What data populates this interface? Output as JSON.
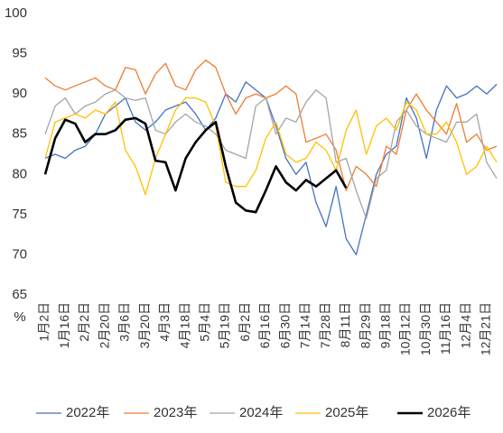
{
  "chart_data": {
    "type": "line",
    "categories": [
      "1月2日",
      null,
      "1月16日",
      null,
      "2月2日",
      null,
      "2月20日",
      null,
      "3月6日",
      null,
      "3月20日",
      null,
      "4月3日",
      null,
      "4月18日",
      null,
      "5月4日",
      null,
      "5月19日",
      null,
      "6月2日",
      null,
      "6月16日",
      null,
      "6月30日",
      null,
      "7月14日",
      null,
      "7月28日",
      null,
      "8月11日",
      null,
      "8月29日",
      null,
      "9月18日",
      null,
      "10月12日",
      null,
      "10月30日",
      null,
      "11月16日",
      null,
      "12月4日",
      null,
      "12月21日",
      null
    ],
    "series": [
      {
        "name": "2022年",
        "color": "#4472c4",
        "width": 1.3,
        "values": [
          82,
          82.5,
          82,
          83,
          83.5,
          85,
          87.5,
          88.5,
          89.5,
          86.5,
          85.5,
          86.5,
          88,
          88.5,
          89,
          87.5,
          85.5,
          87,
          90,
          89,
          91.5,
          90.5,
          89.5,
          86,
          82,
          80,
          81.5,
          76.5,
          73.5,
          78.5,
          72,
          70,
          75,
          80,
          82.5,
          83.5,
          89.5,
          87,
          82,
          88,
          91,
          89.5,
          90,
          91,
          90,
          91.2
        ]
      },
      {
        "name": "2023年",
        "color": "#ed7d31",
        "width": 1.3,
        "values": [
          92,
          91,
          90.5,
          91,
          91.5,
          92,
          91,
          90.5,
          93.3,
          93,
          90,
          92.5,
          93.8,
          91,
          90.5,
          93,
          94.2,
          93.3,
          90,
          87.5,
          89.5,
          90,
          89.5,
          90,
          91,
          90,
          84,
          84.5,
          85,
          83,
          78,
          81,
          80,
          78.5,
          83.5,
          82.5,
          88,
          90,
          88,
          86.5,
          85,
          88.8,
          84,
          85,
          83,
          83.5
        ]
      },
      {
        "name": "2024年",
        "color": "#a5a5a5",
        "width": 1.3,
        "values": [
          85,
          88.5,
          89.5,
          87.5,
          88.5,
          89,
          90,
          90.5,
          89.5,
          89.2,
          89.5,
          85.5,
          85,
          86.5,
          87.5,
          86.5,
          86,
          85,
          83,
          82.5,
          82,
          88.5,
          89.5,
          85,
          87,
          86.5,
          89,
          90.5,
          89.5,
          81.5,
          82,
          78,
          74.5,
          79.5,
          80.5,
          86.5,
          88,
          86,
          85,
          84.5,
          84,
          86.5,
          86.5,
          87.5,
          81.5,
          79.5
        ]
      },
      {
        "name": "2025年",
        "color": "#ffc000",
        "width": 1.3,
        "values": [
          82,
          86.5,
          87,
          87.5,
          87,
          88,
          87.5,
          89,
          83,
          81,
          77.5,
          82,
          85,
          88,
          89.5,
          89.5,
          89,
          86,
          79,
          78.5,
          78.5,
          80.5,
          84.5,
          86.5,
          82.5,
          81.5,
          82,
          84,
          83,
          80.5,
          85.5,
          88,
          82.5,
          86,
          87,
          85.5,
          89,
          88,
          85,
          85,
          86.5,
          84,
          80,
          81,
          83.5,
          81.5
        ]
      },
      {
        "name": "2026年",
        "color": "#000000",
        "width": 2.6,
        "values": [
          80,
          84.5,
          86.8,
          86.3,
          84,
          85,
          85,
          85.5,
          86.8,
          87,
          86.3,
          81.7,
          81.5,
          78,
          82,
          84,
          85.5,
          86.5,
          81,
          76.5,
          75.5,
          75.3,
          78,
          81,
          79,
          78,
          79.3,
          78.5,
          79.5,
          80.5,
          78.3,
          null,
          null,
          null,
          null,
          null,
          null,
          null,
          null,
          null,
          null,
          null,
          null,
          null,
          null,
          null
        ]
      }
    ],
    "ylim": [
      65,
      100
    ],
    "yticks": [
      65,
      70,
      75,
      80,
      85,
      90,
      95,
      100
    ],
    "y_unit": "%",
    "grid": false,
    "legend": "bottom"
  }
}
